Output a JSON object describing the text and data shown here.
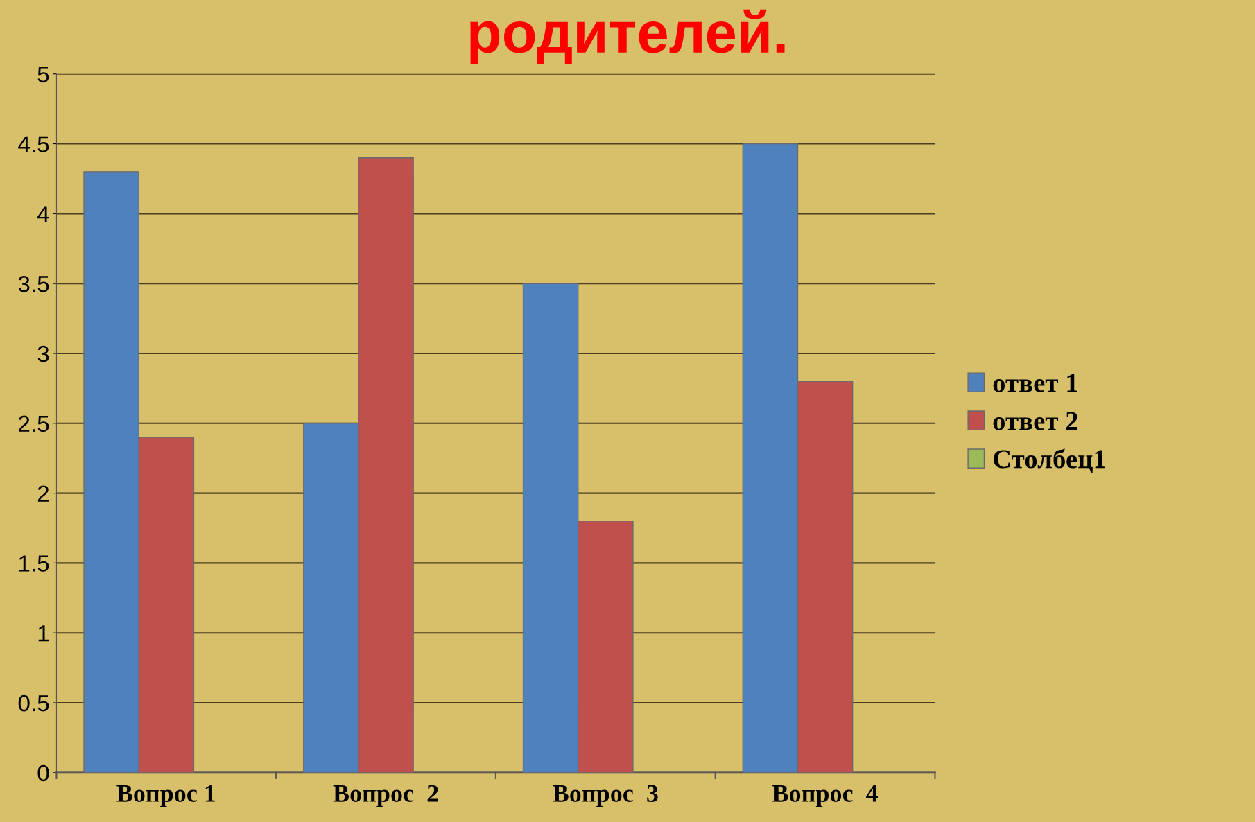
{
  "chart_data": {
    "type": "bar",
    "title": "родителей.",
    "categories": [
      "Вопрос 1",
      "Вопрос  2",
      "Вопрос  3",
      "Вопрос  4"
    ],
    "series": [
      {
        "name": "ответ 1",
        "color": "#4f81bd",
        "values": [
          4.3,
          2.5,
          3.5,
          4.5
        ]
      },
      {
        "name": "ответ 2",
        "color": "#c0504d",
        "values": [
          2.4,
          4.4,
          1.8,
          2.8
        ]
      },
      {
        "name": "Столбец1",
        "color": "#9bbb59",
        "values": [
          null,
          null,
          null,
          null
        ]
      }
    ],
    "ylim": [
      0,
      5
    ],
    "yticks": [
      0,
      0.5,
      1,
      1.5,
      2,
      2.5,
      3,
      3.5,
      4,
      4.5,
      5
    ],
    "grid": "y",
    "legend": "right"
  }
}
